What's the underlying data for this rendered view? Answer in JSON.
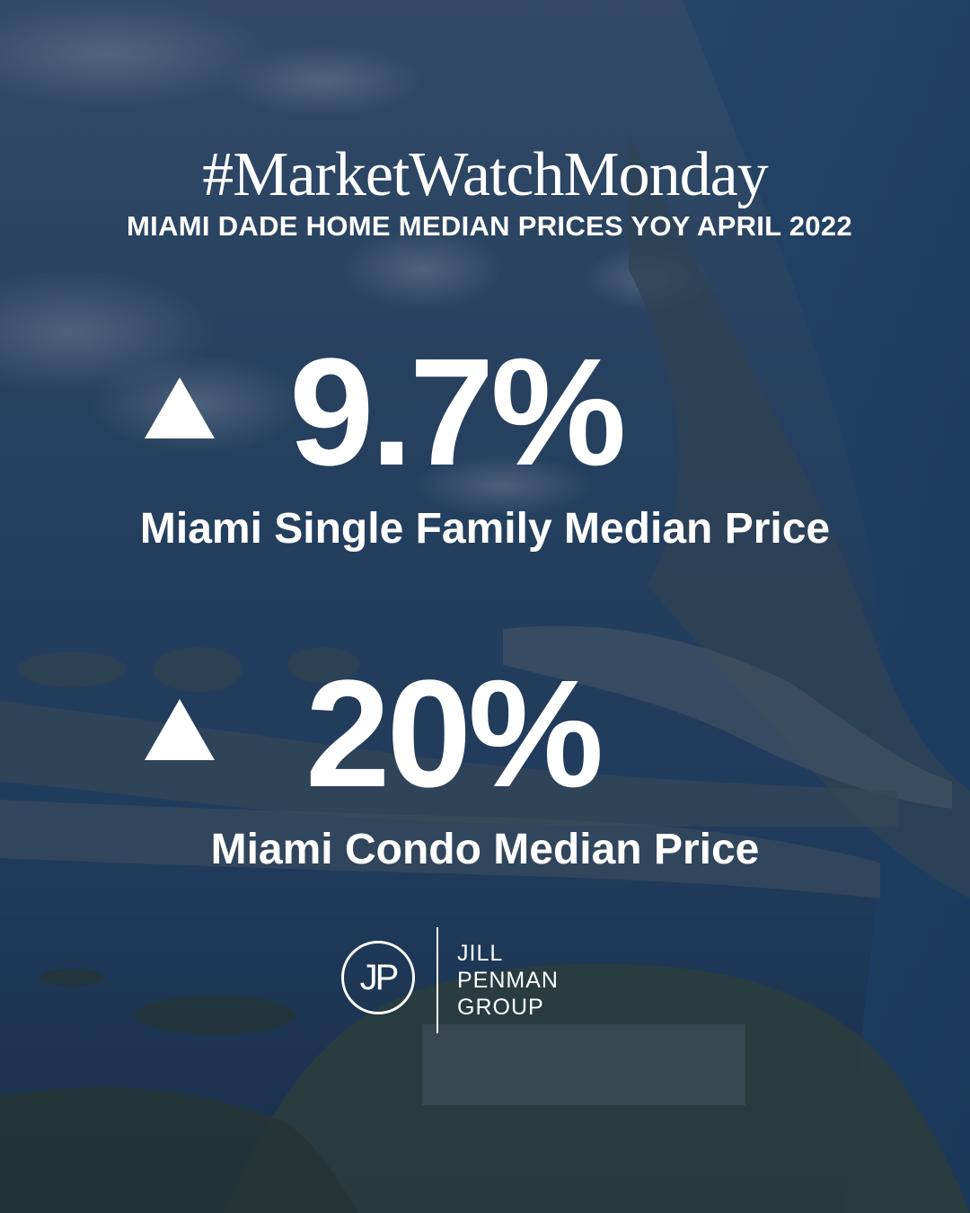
{
  "header": {
    "hashtag": "#MarketWatchMonday",
    "subtitle": "MIAMI DADE HOME MEDIAN PRICES YOY APRIL 2022"
  },
  "stats": [
    {
      "direction": "up",
      "value": "9.7%",
      "label": "Miami Single Family Median Price"
    },
    {
      "direction": "up",
      "value": "20%",
      "label": "Miami Condo Median Price"
    }
  ],
  "logo": {
    "monogram": "JP",
    "lines": [
      "JILL",
      "PENMAN",
      "GROUP"
    ]
  },
  "colors": {
    "text": "#ffffff",
    "water": "#1f4a75",
    "overlay": "#14263e"
  },
  "background": {
    "icon": "aerial-photo-miami-coastline"
  }
}
